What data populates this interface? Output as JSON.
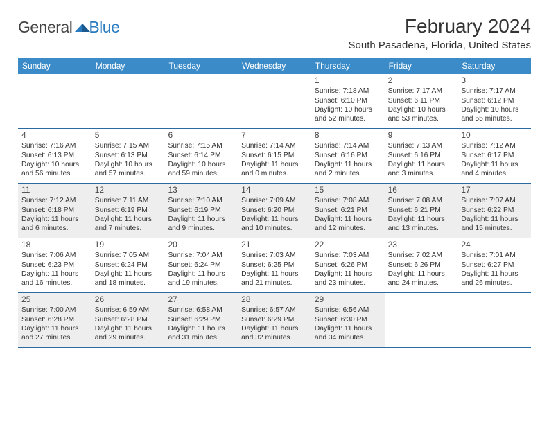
{
  "logo": {
    "general": "General",
    "blue": "Blue",
    "accent_color": "#2a7bbf"
  },
  "header": {
    "month_title": "February 2024",
    "location": "South Pasadena, Florida, United States"
  },
  "weekdays": [
    "Sunday",
    "Monday",
    "Tuesday",
    "Wednesday",
    "Thursday",
    "Friday",
    "Saturday"
  ],
  "colors": {
    "header_bar": "#3b8bc8",
    "row_divider": "#2a6aa0",
    "shaded_cell": "#eeeeee",
    "text": "#333333"
  },
  "weeks": [
    {
      "shaded": false,
      "days": [
        {
          "empty": true
        },
        {
          "empty": true
        },
        {
          "empty": true
        },
        {
          "empty": true
        },
        {
          "num": "1",
          "sunrise": "Sunrise: 7:18 AM",
          "sunset": "Sunset: 6:10 PM",
          "daylight1": "Daylight: 10 hours",
          "daylight2": "and 52 minutes."
        },
        {
          "num": "2",
          "sunrise": "Sunrise: 7:17 AM",
          "sunset": "Sunset: 6:11 PM",
          "daylight1": "Daylight: 10 hours",
          "daylight2": "and 53 minutes."
        },
        {
          "num": "3",
          "sunrise": "Sunrise: 7:17 AM",
          "sunset": "Sunset: 6:12 PM",
          "daylight1": "Daylight: 10 hours",
          "daylight2": "and 55 minutes."
        }
      ]
    },
    {
      "shaded": false,
      "days": [
        {
          "num": "4",
          "sunrise": "Sunrise: 7:16 AM",
          "sunset": "Sunset: 6:13 PM",
          "daylight1": "Daylight: 10 hours",
          "daylight2": "and 56 minutes."
        },
        {
          "num": "5",
          "sunrise": "Sunrise: 7:15 AM",
          "sunset": "Sunset: 6:13 PM",
          "daylight1": "Daylight: 10 hours",
          "daylight2": "and 57 minutes."
        },
        {
          "num": "6",
          "sunrise": "Sunrise: 7:15 AM",
          "sunset": "Sunset: 6:14 PM",
          "daylight1": "Daylight: 10 hours",
          "daylight2": "and 59 minutes."
        },
        {
          "num": "7",
          "sunrise": "Sunrise: 7:14 AM",
          "sunset": "Sunset: 6:15 PM",
          "daylight1": "Daylight: 11 hours",
          "daylight2": "and 0 minutes."
        },
        {
          "num": "8",
          "sunrise": "Sunrise: 7:14 AM",
          "sunset": "Sunset: 6:16 PM",
          "daylight1": "Daylight: 11 hours",
          "daylight2": "and 2 minutes."
        },
        {
          "num": "9",
          "sunrise": "Sunrise: 7:13 AM",
          "sunset": "Sunset: 6:16 PM",
          "daylight1": "Daylight: 11 hours",
          "daylight2": "and 3 minutes."
        },
        {
          "num": "10",
          "sunrise": "Sunrise: 7:12 AM",
          "sunset": "Sunset: 6:17 PM",
          "daylight1": "Daylight: 11 hours",
          "daylight2": "and 4 minutes."
        }
      ]
    },
    {
      "shaded": true,
      "days": [
        {
          "num": "11",
          "sunrise": "Sunrise: 7:12 AM",
          "sunset": "Sunset: 6:18 PM",
          "daylight1": "Daylight: 11 hours",
          "daylight2": "and 6 minutes."
        },
        {
          "num": "12",
          "sunrise": "Sunrise: 7:11 AM",
          "sunset": "Sunset: 6:19 PM",
          "daylight1": "Daylight: 11 hours",
          "daylight2": "and 7 minutes."
        },
        {
          "num": "13",
          "sunrise": "Sunrise: 7:10 AM",
          "sunset": "Sunset: 6:19 PM",
          "daylight1": "Daylight: 11 hours",
          "daylight2": "and 9 minutes."
        },
        {
          "num": "14",
          "sunrise": "Sunrise: 7:09 AM",
          "sunset": "Sunset: 6:20 PM",
          "daylight1": "Daylight: 11 hours",
          "daylight2": "and 10 minutes."
        },
        {
          "num": "15",
          "sunrise": "Sunrise: 7:08 AM",
          "sunset": "Sunset: 6:21 PM",
          "daylight1": "Daylight: 11 hours",
          "daylight2": "and 12 minutes."
        },
        {
          "num": "16",
          "sunrise": "Sunrise: 7:08 AM",
          "sunset": "Sunset: 6:21 PM",
          "daylight1": "Daylight: 11 hours",
          "daylight2": "and 13 minutes."
        },
        {
          "num": "17",
          "sunrise": "Sunrise: 7:07 AM",
          "sunset": "Sunset: 6:22 PM",
          "daylight1": "Daylight: 11 hours",
          "daylight2": "and 15 minutes."
        }
      ]
    },
    {
      "shaded": false,
      "days": [
        {
          "num": "18",
          "sunrise": "Sunrise: 7:06 AM",
          "sunset": "Sunset: 6:23 PM",
          "daylight1": "Daylight: 11 hours",
          "daylight2": "and 16 minutes."
        },
        {
          "num": "19",
          "sunrise": "Sunrise: 7:05 AM",
          "sunset": "Sunset: 6:24 PM",
          "daylight1": "Daylight: 11 hours",
          "daylight2": "and 18 minutes."
        },
        {
          "num": "20",
          "sunrise": "Sunrise: 7:04 AM",
          "sunset": "Sunset: 6:24 PM",
          "daylight1": "Daylight: 11 hours",
          "daylight2": "and 19 minutes."
        },
        {
          "num": "21",
          "sunrise": "Sunrise: 7:03 AM",
          "sunset": "Sunset: 6:25 PM",
          "daylight1": "Daylight: 11 hours",
          "daylight2": "and 21 minutes."
        },
        {
          "num": "22",
          "sunrise": "Sunrise: 7:03 AM",
          "sunset": "Sunset: 6:26 PM",
          "daylight1": "Daylight: 11 hours",
          "daylight2": "and 23 minutes."
        },
        {
          "num": "23",
          "sunrise": "Sunrise: 7:02 AM",
          "sunset": "Sunset: 6:26 PM",
          "daylight1": "Daylight: 11 hours",
          "daylight2": "and 24 minutes."
        },
        {
          "num": "24",
          "sunrise": "Sunrise: 7:01 AM",
          "sunset": "Sunset: 6:27 PM",
          "daylight1": "Daylight: 11 hours",
          "daylight2": "and 26 minutes."
        }
      ]
    },
    {
      "shaded": true,
      "days": [
        {
          "num": "25",
          "sunrise": "Sunrise: 7:00 AM",
          "sunset": "Sunset: 6:28 PM",
          "daylight1": "Daylight: 11 hours",
          "daylight2": "and 27 minutes."
        },
        {
          "num": "26",
          "sunrise": "Sunrise: 6:59 AM",
          "sunset": "Sunset: 6:28 PM",
          "daylight1": "Daylight: 11 hours",
          "daylight2": "and 29 minutes."
        },
        {
          "num": "27",
          "sunrise": "Sunrise: 6:58 AM",
          "sunset": "Sunset: 6:29 PM",
          "daylight1": "Daylight: 11 hours",
          "daylight2": "and 31 minutes."
        },
        {
          "num": "28",
          "sunrise": "Sunrise: 6:57 AM",
          "sunset": "Sunset: 6:29 PM",
          "daylight1": "Daylight: 11 hours",
          "daylight2": "and 32 minutes."
        },
        {
          "num": "29",
          "sunrise": "Sunrise: 6:56 AM",
          "sunset": "Sunset: 6:30 PM",
          "daylight1": "Daylight: 11 hours",
          "daylight2": "and 34 minutes."
        },
        {
          "empty": true,
          "shaded_off": true
        },
        {
          "empty": true,
          "shaded_off": true
        }
      ]
    }
  ]
}
